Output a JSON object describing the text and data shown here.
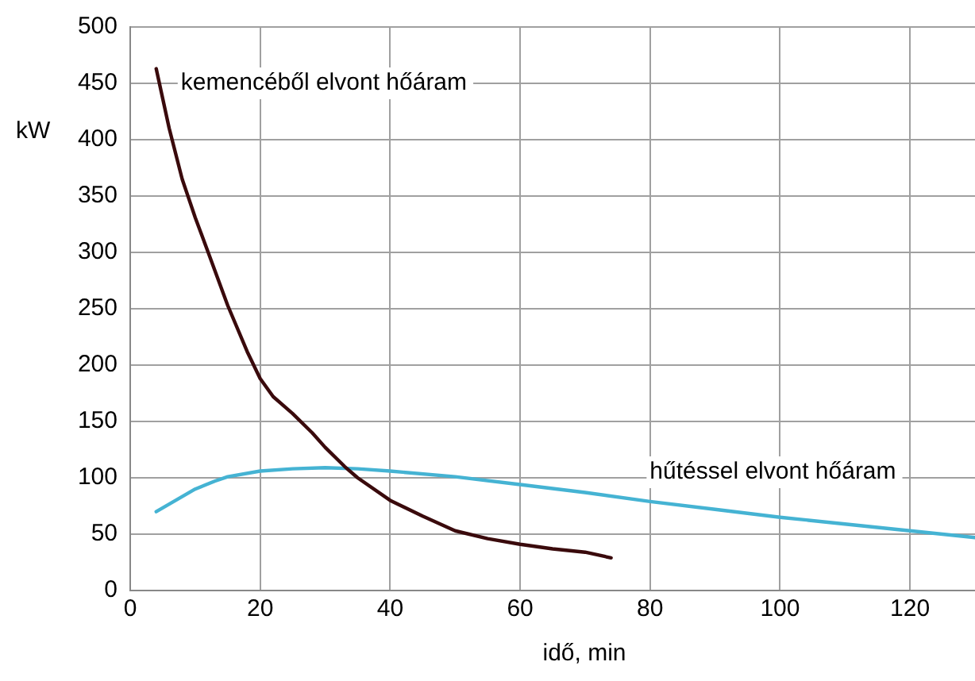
{
  "chart_data": {
    "type": "line",
    "xlabel": "idő, min",
    "ylabel": "kW",
    "xlim": [
      0,
      130
    ],
    "xticks": [
      0,
      20,
      40,
      60,
      80,
      100,
      120
    ],
    "ylim": [
      0,
      500
    ],
    "yticks": [
      0,
      50,
      100,
      150,
      200,
      250,
      300,
      350,
      400,
      450,
      500
    ],
    "grid": true,
    "legend": false,
    "marker": "none",
    "line_style": "solid",
    "series": [
      {
        "name": "kemencéből elvont hőáram",
        "color": "#3a0a0c",
        "x": [
          4,
          6,
          8,
          10,
          12,
          15,
          18,
          20,
          22,
          25,
          28,
          30,
          33,
          35,
          40,
          45,
          50,
          55,
          60,
          65,
          70,
          74
        ],
        "values": [
          463,
          410,
          365,
          331,
          300,
          253,
          212,
          188,
          172,
          157,
          140,
          127,
          110,
          100,
          80,
          66,
          53,
          46,
          41,
          37,
          34,
          29
        ]
      },
      {
        "name": "hűtéssel elvont hőáram",
        "color": "#45b3d3",
        "x": [
          4,
          7,
          10,
          13,
          15,
          20,
          25,
          30,
          35,
          40,
          50,
          60,
          70,
          80,
          90,
          100,
          110,
          120,
          130
        ],
        "values": [
          70,
          80,
          90,
          97,
          101,
          106,
          108,
          109,
          108,
          106,
          101,
          94,
          87,
          79,
          72,
          65,
          59,
          53,
          47
        ]
      }
    ]
  }
}
